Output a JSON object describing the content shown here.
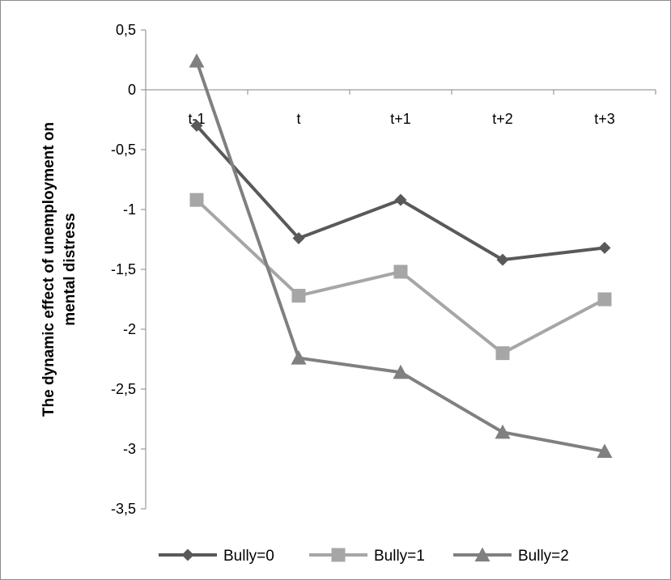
{
  "chart_data": {
    "type": "line",
    "title": "",
    "xlabel": "",
    "ylabel_lines": [
      "The dynamic effect of unemployment on",
      "mental distress"
    ],
    "categories": [
      "t-1",
      "t",
      "t+1",
      "t+2",
      "t+3"
    ],
    "yticks": [
      "0,5",
      "0",
      "-0,5",
      "-1",
      "-1,5",
      "-2",
      "-2,5",
      "-3",
      "-3,5"
    ],
    "ylim": [
      -3.5,
      0.5
    ],
    "ytick_step": 0.5,
    "grid": false,
    "legend_position": "bottom",
    "series": [
      {
        "name": "Bully=0",
        "values": [
          -0.3,
          -1.24,
          -0.92,
          -1.42,
          -1.32
        ],
        "color": "#595959",
        "marker": "diamond"
      },
      {
        "name": "Bully=1",
        "values": [
          -0.92,
          -1.72,
          -1.52,
          -2.2,
          -1.75
        ],
        "color": "#a6a6a6",
        "marker": "square"
      },
      {
        "name": "Bully=2",
        "values": [
          0.24,
          -2.24,
          -2.36,
          -2.86,
          -3.02
        ],
        "color": "#808080",
        "marker": "triangle"
      }
    ]
  }
}
